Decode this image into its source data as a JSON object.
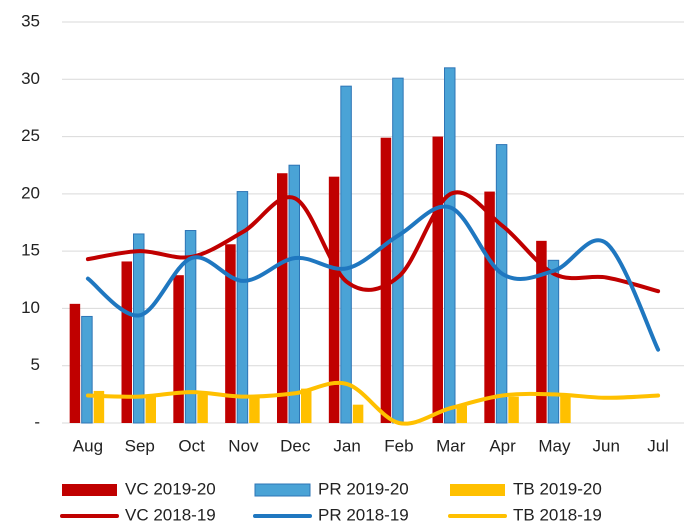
{
  "chart_data": {
    "type": "combo",
    "categories": [
      "Aug",
      "Sep",
      "Oct",
      "Nov",
      "Dec",
      "Jan",
      "Feb",
      "Mar",
      "Apr",
      "May",
      "Jun",
      "Jul"
    ],
    "ylim": [
      0,
      35
    ],
    "yticks": [
      {
        "value": 0,
        "label": "-"
      },
      5,
      10,
      15,
      20,
      25,
      30,
      35
    ],
    "grid": true,
    "legend": "bottom",
    "series": [
      {
        "name": "VC 2019-20",
        "kind": "bar",
        "color": "#c00000",
        "values": [
          10.4,
          14.1,
          12.9,
          15.6,
          21.8,
          21.5,
          24.9,
          25.0,
          20.2,
          15.9,
          null,
          null
        ]
      },
      {
        "name": "PR 2019-20",
        "kind": "bar",
        "color": "#4aa3d6",
        "values": [
          9.3,
          16.5,
          16.8,
          20.2,
          22.5,
          29.4,
          30.1,
          31.0,
          24.3,
          14.2,
          null,
          null
        ]
      },
      {
        "name": "TB 2019-20",
        "kind": "bar",
        "color": "#ffc000",
        "values": [
          2.8,
          2.3,
          2.5,
          2.3,
          3.0,
          1.6,
          0,
          1.5,
          2.3,
          2.4,
          null,
          null
        ]
      },
      {
        "name": "VC 2018-19",
        "kind": "line",
        "color": "#c00000",
        "values": [
          14.3,
          15.0,
          14.5,
          16.7,
          19.6,
          12.3,
          12.8,
          20.0,
          17.2,
          13.0,
          12.7,
          11.5
        ]
      },
      {
        "name": "PR 2018-19",
        "kind": "line",
        "color": "#1f77c0",
        "values": [
          12.6,
          9.4,
          14.4,
          12.4,
          14.4,
          13.5,
          16.4,
          18.8,
          13.0,
          13.3,
          15.7,
          6.4
        ]
      },
      {
        "name": "TB 2018-19",
        "kind": "line",
        "color": "#ffc000",
        "values": [
          2.4,
          2.3,
          2.7,
          2.3,
          2.6,
          3.4,
          0,
          1.3,
          2.4,
          2.5,
          2.2,
          2.4
        ]
      }
    ]
  }
}
